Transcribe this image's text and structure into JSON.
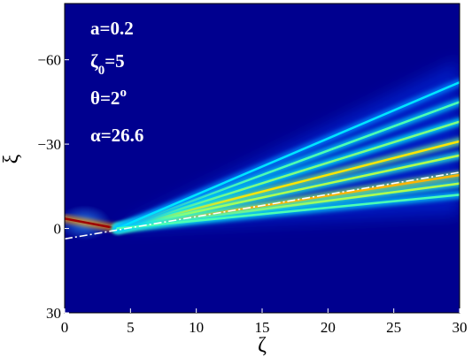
{
  "chart_data": {
    "type": "heatmap",
    "colormap": "jet",
    "xlabel": "ζ",
    "ylabel": "ξ",
    "xlim": [
      0,
      30
    ],
    "ylim": [
      -80,
      30
    ],
    "y_inverted": true,
    "x_ticks": [
      "0",
      "5",
      "10",
      "15",
      "20",
      "25",
      "30"
    ],
    "y_ticks": [
      {
        "value": -60,
        "label": "−60"
      },
      {
        "value": -30,
        "label": "−30"
      },
      {
        "value": 0,
        "label": "0"
      },
      {
        "value": 30,
        "label": "30"
      }
    ],
    "annotations": {
      "a": "a=0.2",
      "zeta0_main": "ζ",
      "zeta0_sub": "0",
      "zeta0_value": "=5",
      "theta_main": "θ=2",
      "theta_sup": "o",
      "alpha": "α=26.6"
    },
    "reference_line": {
      "style": "dash-dot",
      "color": "#ffffff",
      "points": [
        [
          0,
          3.7
        ],
        [
          30,
          -20
        ]
      ]
    },
    "beams": [
      {
        "x0": 0,
        "y0": -3.5,
        "x1": 4,
        "y1": 0,
        "intensity": 0.97
      },
      {
        "x0": 4,
        "y0": 0,
        "x1": 30,
        "y1": -16,
        "intensity": 0.55
      },
      {
        "x0": 4,
        "y0": 0,
        "x1": 30,
        "y1": -19,
        "intensity": 0.7
      },
      {
        "x0": 4,
        "y0": 0,
        "x1": 30,
        "y1": -26,
        "intensity": 0.55
      },
      {
        "x0": 4,
        "y0": 0,
        "x1": 30,
        "y1": -31,
        "intensity": 0.65
      },
      {
        "x0": 4,
        "y0": 0,
        "x1": 30,
        "y1": -38,
        "intensity": 0.5
      },
      {
        "x0": 4,
        "y0": 0,
        "x1": 30,
        "y1": -45,
        "intensity": 0.45
      },
      {
        "x0": 4,
        "y0": 0,
        "x1": 30,
        "y1": -52,
        "intensity": 0.35
      },
      {
        "x0": 4,
        "y0": 0,
        "x1": 30,
        "y1": -12,
        "intensity": 0.45
      }
    ]
  }
}
